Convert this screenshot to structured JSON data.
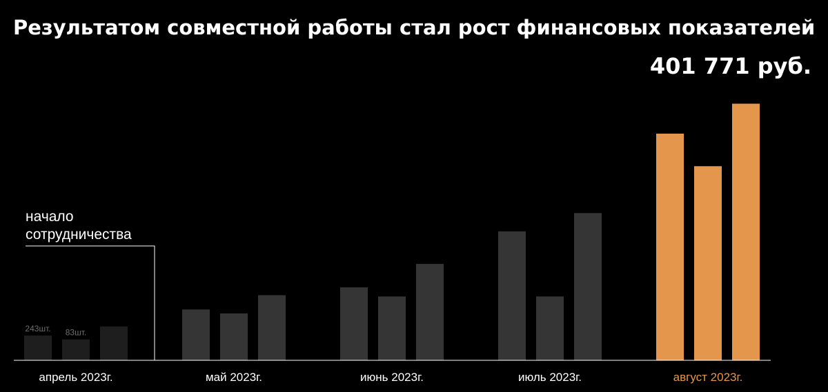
{
  "chart_data": {
    "type": "bar",
    "title": "Результатом совместной работы стал рост финансовых показателей",
    "highlight_value": "401 771 руб.",
    "categories": [
      "апрель 2023г.",
      "май 2023г.",
      "июнь 2023г.",
      "июль 2023г.",
      "август 2023г."
    ],
    "series": [
      {
        "values": [
          9.5,
          19.5,
          28,
          49.5,
          87
        ]
      },
      {
        "values": [
          8,
          18,
          24.5,
          24.5,
          74.5
        ]
      },
      {
        "values": [
          13,
          25,
          37,
          56.5,
          98.5
        ]
      }
    ],
    "ylim": [
      0,
      110
    ],
    "bar_labels": [
      {
        "category": 0,
        "series": 0,
        "text": "243шт."
      },
      {
        "category": 0,
        "series": 1,
        "text": "83шт."
      }
    ],
    "annotation": {
      "lines": [
        "начало",
        "сотрудничества"
      ],
      "after_category": 0
    },
    "colors": {
      "background": "#000000",
      "default_bars": [
        "#1e1e1e",
        "#353535",
        "#353535",
        "#353535"
      ],
      "first_category_bars": "#1e1e1e",
      "highlight_bar": "#e4964c",
      "highlight_label": "#e4964c",
      "default_label": "#ffffff",
      "axis": "#ffffff"
    },
    "highlight_category": 4,
    "grid": false
  }
}
